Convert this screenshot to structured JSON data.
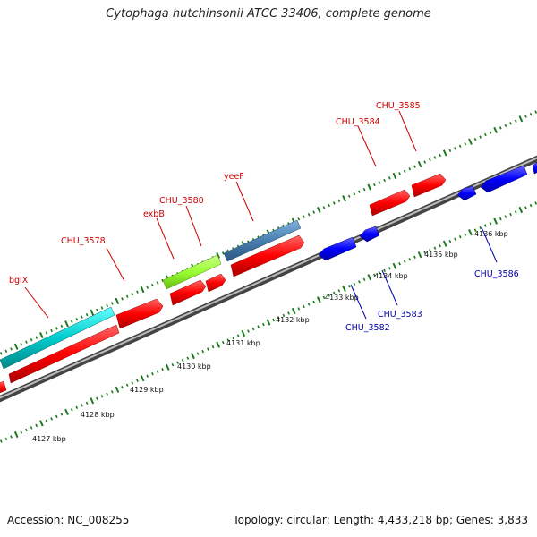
{
  "title": "Cytophaga hutchinsonii ATCC 33406, complete genome",
  "footer": {
    "accession": "Accession: NC_008255",
    "summary": "Topology: circular; Length: 4,433,218 bp; Genes: 3,833"
  },
  "colors": {
    "forward_gene": "#ff0000",
    "reverse_gene": "#0000ff",
    "cyan_gene": "#00cccc",
    "green_gene": "#99ff33",
    "steel_gene": "#4a7fb0",
    "forward_label": "#cc0000",
    "reverse_label": "#0000aa",
    "backbone": "#888888",
    "ticks": "#1a7a1a"
  },
  "kbp_labels": [
    "4127 kbp",
    "4128 kbp",
    "4129 kbp",
    "4130 kbp",
    "4131 kbp",
    "4132 kbp",
    "4133 kbp",
    "4134 kbp",
    "4135 kbp",
    "4136 kbp"
  ],
  "forward_labels": [
    "bglX",
    "CHU_3578",
    "exbB",
    "CHU_3580",
    "yeeF",
    "CHU_3584",
    "CHU_3585"
  ],
  "reverse_labels": [
    "CHU_3582",
    "CHU_3583",
    "CHU_3586"
  ]
}
